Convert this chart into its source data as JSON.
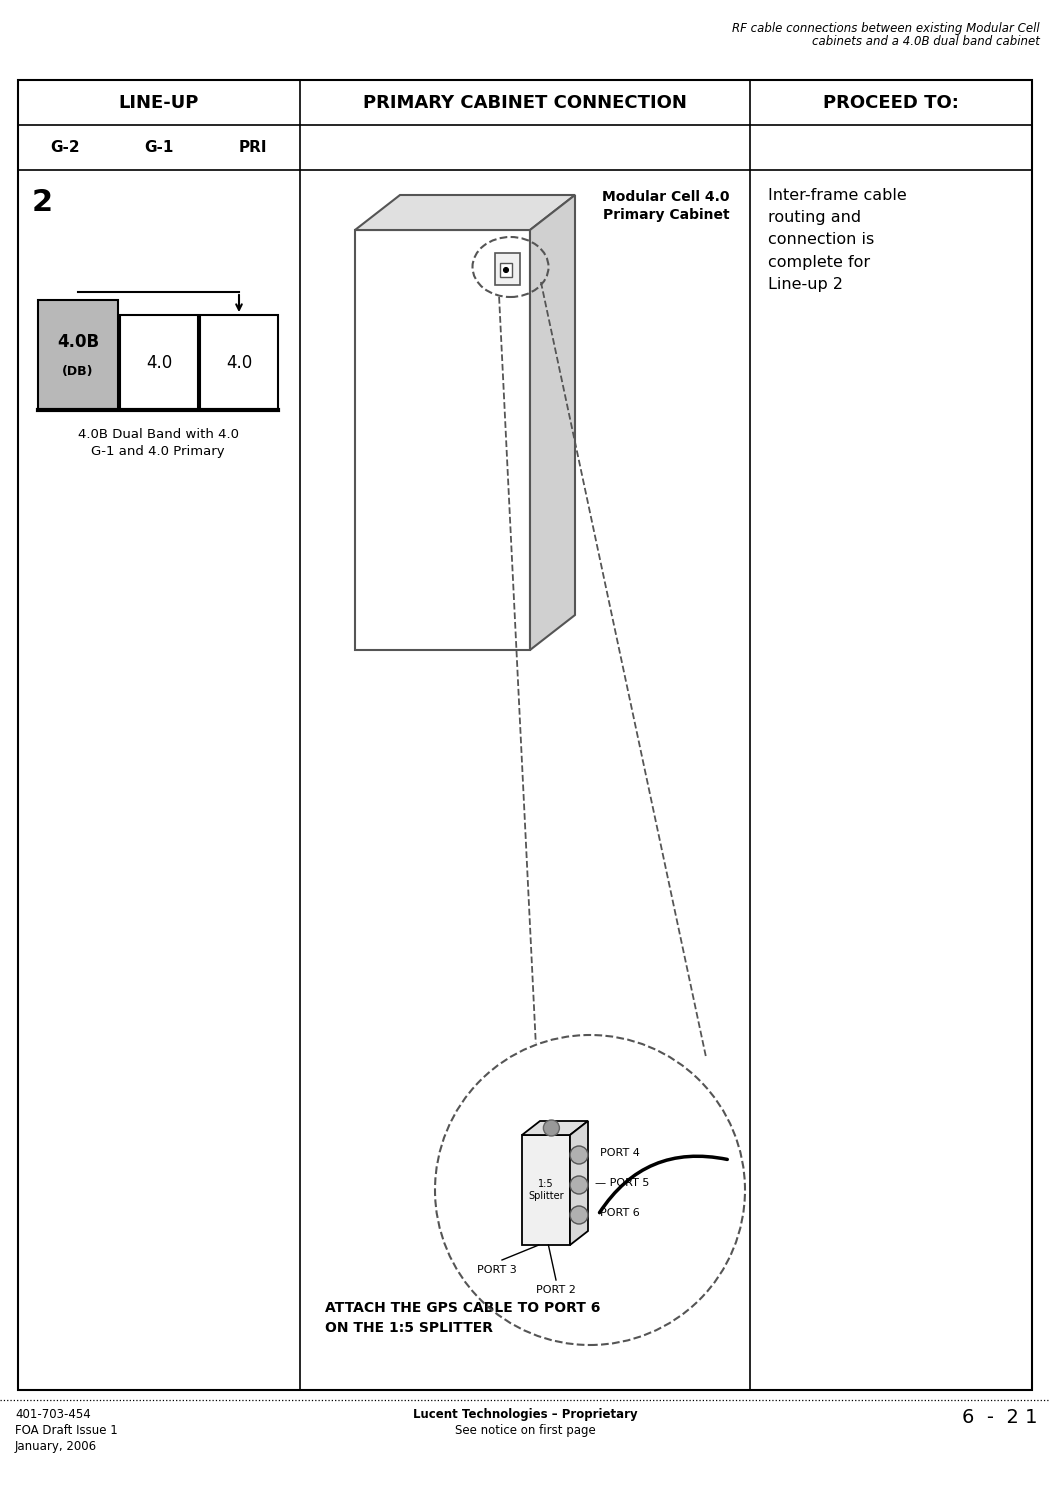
{
  "page_title_line1": "RF cable connections between existing Modular Cell",
  "page_title_line2": "cabinets and a 4.0B dual band cabinet",
  "header_col1": "LINE-UP",
  "header_col2": "PRIMARY CABINET CONNECTION",
  "header_col3": "PROCEED TO:",
  "subheader_g2": "G-2",
  "subheader_g1": "G-1",
  "subheader_pri": "PRI",
  "row_number": "2",
  "cabinet_label1": "4.0B",
  "cabinet_label1b": "(DB)",
  "cabinet_label2": "4.0",
  "cabinet_label3": "4.0",
  "caption_line1": "4.0B Dual Band with 4.0",
  "caption_line2": "G-1 and 4.0 Primary",
  "modular_cell_label1": "Modular Cell 4.0",
  "modular_cell_label2": "Primary Cabinet",
  "proceed_text": "Inter-frame cable\nrouting and\nconnection is\ncomplete for\nLine-up 2",
  "attach_text_line1": "ATTACH THE GPS CABLE TO PORT 6",
  "attach_text_line2": "ON THE 1:5 SPLITTER",
  "footer_left_line1": "401-703-454",
  "footer_left_line2": "FOA Draft Issue 1",
  "footer_left_line3": "January, 2006",
  "footer_center_line1": "Lucent Technologies – Proprietary",
  "footer_center_line2": "See notice on first page",
  "footer_right": "6  -  2 1",
  "bg_color": "#ffffff"
}
